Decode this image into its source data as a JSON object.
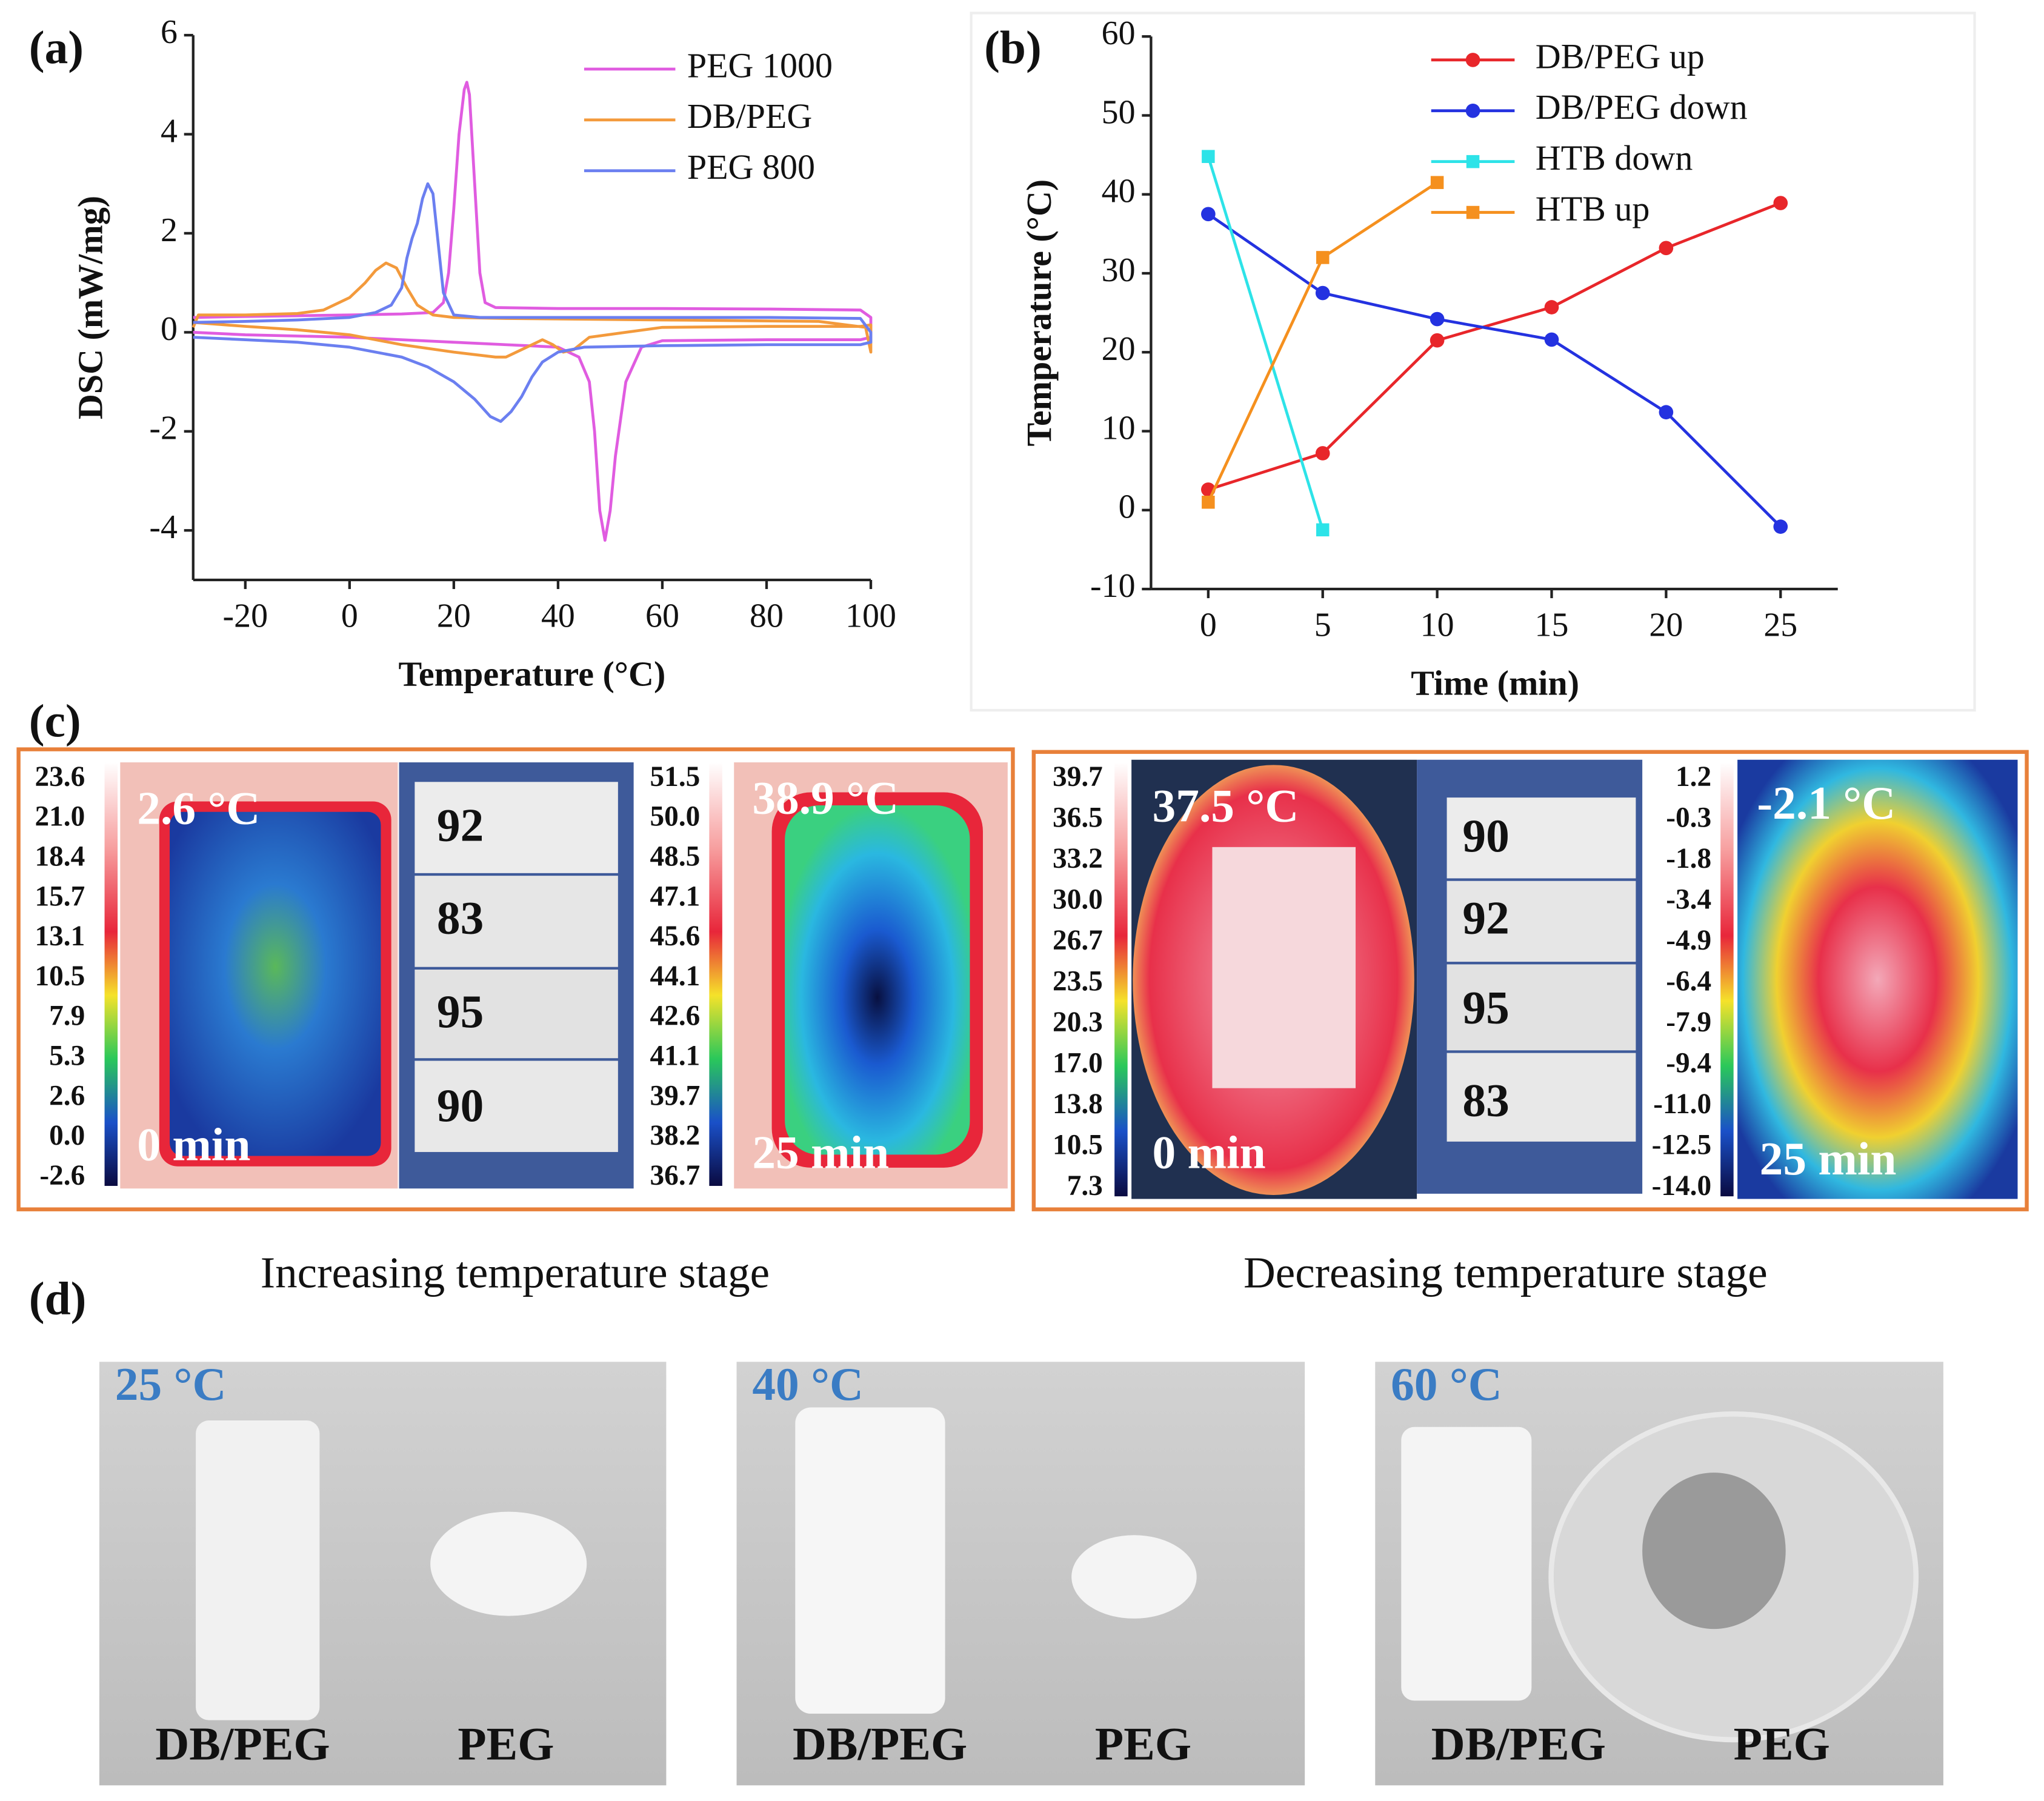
{
  "chart_data": [
    {
      "type": "line",
      "xlabel": "Temperature (°C)",
      "ylabel": "DSC (mW/mg)",
      "xlim": [
        -30,
        100
      ],
      "xticks": [
        -20,
        0,
        20,
        40,
        60,
        80,
        100
      ],
      "ylim": [
        -5,
        6
      ],
      "yticks": [
        -4,
        -2,
        0,
        2,
        4,
        6
      ],
      "series": [
        {
          "name": "PEG 1000",
          "color": "#e05ce0",
          "x": [
            -30,
            -20,
            0,
            10,
            16,
            18,
            19,
            20,
            21,
            22,
            22.5,
            23,
            24,
            25,
            26,
            28,
            40,
            60,
            80,
            98,
            100,
            100,
            98,
            80,
            60,
            56,
            53,
            51,
            50,
            49,
            48,
            47,
            46,
            44,
            40,
            30,
            20,
            0,
            -20,
            -30
          ],
          "values": [
            0.3,
            0.32,
            0.35,
            0.37,
            0.4,
            0.6,
            1.2,
            2.5,
            4.0,
            4.9,
            5.05,
            4.8,
            3.0,
            1.2,
            0.6,
            0.5,
            0.48,
            0.48,
            0.47,
            0.45,
            0.3,
            -0.1,
            -0.15,
            -0.15,
            -0.17,
            -0.3,
            -1.0,
            -2.5,
            -3.6,
            -4.2,
            -3.6,
            -2.0,
            -1.0,
            -0.5,
            -0.3,
            -0.25,
            -0.2,
            -0.1,
            -0.05,
            0.0
          ]
        },
        {
          "name": "DB/PEG",
          "color": "#f39a3c",
          "x": [
            -30,
            -29,
            -20,
            -10,
            -5,
            0,
            3,
            5,
            7,
            9,
            11,
            13,
            16,
            20,
            30,
            60,
            90,
            99,
            100,
            100,
            98,
            80,
            60,
            46,
            43,
            41,
            39,
            37,
            33,
            30,
            28,
            20,
            10,
            0,
            -10,
            -20,
            -30
          ],
          "values": [
            0.1,
            0.35,
            0.35,
            0.38,
            0.45,
            0.7,
            1.0,
            1.25,
            1.4,
            1.3,
            0.9,
            0.55,
            0.35,
            0.3,
            0.28,
            0.25,
            0.22,
            0.1,
            -0.4,
            0.15,
            0.12,
            0.12,
            0.1,
            -0.1,
            -0.35,
            -0.4,
            -0.25,
            -0.15,
            -0.35,
            -0.5,
            -0.5,
            -0.4,
            -0.25,
            -0.05,
            0.05,
            0.12,
            0.2
          ]
        },
        {
          "name": "PEG 800",
          "color": "#6b7ff0",
          "x": [
            -30,
            -20,
            -10,
            0,
            5,
            8,
            10,
            11,
            12,
            13,
            14,
            15,
            16,
            17,
            18,
            20,
            25,
            40,
            60,
            80,
            98,
            100,
            100,
            98,
            80,
            60,
            45,
            40,
            37,
            35,
            33,
            31,
            29,
            27,
            24,
            20,
            15,
            10,
            0,
            -10,
            -20,
            -30
          ],
          "values": [
            0.2,
            0.22,
            0.25,
            0.3,
            0.4,
            0.55,
            0.9,
            1.5,
            1.9,
            2.2,
            2.7,
            3.0,
            2.8,
            1.8,
            0.8,
            0.35,
            0.3,
            0.3,
            0.3,
            0.3,
            0.28,
            0.0,
            -0.2,
            -0.25,
            -0.25,
            -0.27,
            -0.3,
            -0.4,
            -0.6,
            -0.9,
            -1.3,
            -1.6,
            -1.8,
            -1.7,
            -1.35,
            -1.0,
            -0.7,
            -0.5,
            -0.3,
            -0.2,
            -0.15,
            -0.1
          ]
        }
      ]
    },
    {
      "type": "line",
      "xlabel": "Time (min)",
      "ylabel": "Temperature (°C)",
      "x": [
        0,
        5,
        10,
        15,
        20,
        25
      ],
      "xlim": [
        -2.5,
        27.5
      ],
      "xticks": [
        0,
        5,
        10,
        15,
        20,
        25
      ],
      "ylim": [
        -10,
        60
      ],
      "yticks": [
        -10,
        0,
        10,
        20,
        30,
        40,
        50,
        60
      ],
      "series": [
        {
          "name": "DB/PEG up",
          "color": "#e8262a",
          "marker": "circle",
          "values": [
            2.6,
            7.2,
            21.5,
            25.7,
            33.2,
            38.9
          ]
        },
        {
          "name": "DB/PEG down",
          "color": "#2432e0",
          "marker": "circle",
          "values": [
            37.5,
            27.5,
            24.2,
            21.6,
            12.4,
            -2.1
          ]
        },
        {
          "name": "HTB down",
          "color": "#2de3e8",
          "marker": "square",
          "values": [
            44.8,
            -2.5,
            null,
            null,
            null,
            null
          ]
        },
        {
          "name": "HTB up",
          "color": "#f5901e",
          "marker": "square",
          "values": [
            1.0,
            32.0,
            41.5,
            null,
            null,
            null
          ]
        }
      ]
    }
  ],
  "panel_labels": [
    "(a)",
    "(b)",
    "(c)",
    "(d)"
  ],
  "thermal": {
    "groups": [
      {
        "colorbar_left": [
          "23.6",
          "21.0",
          "18.4",
          "15.7",
          "13.1",
          "10.5",
          "7.9",
          "5.3",
          "2.6",
          "0.0",
          "-2.6"
        ],
        "start_temp": "2.6 °C",
        "start_time": "0 min",
        "samples": [
          "92",
          "83",
          "95",
          "90"
        ],
        "colorbar_right": [
          "51.5",
          "50.0",
          "48.5",
          "47.1",
          "45.6",
          "44.1",
          "42.6",
          "41.1",
          "39.7",
          "38.2",
          "36.7"
        ],
        "end_temp": "38.9 °C",
        "end_time": "25 min"
      },
      {
        "colorbar_left": [
          "39.7",
          "36.5",
          "33.2",
          "30.0",
          "26.7",
          "23.5",
          "20.3",
          "17.0",
          "13.8",
          "10.5",
          "7.3"
        ],
        "start_temp": "37.5 °C",
        "start_time": "0 min",
        "samples": [
          "90",
          "92",
          "95",
          "83"
        ],
        "colorbar_right": [
          "1.2",
          "-0.3",
          "-1.8",
          "-3.4",
          "-4.9",
          "-6.4",
          "-7.9",
          "-9.4",
          "-11.0",
          "-12.5",
          "-14.0"
        ],
        "end_temp": "-2.1 °C",
        "end_time": "25 min"
      }
    ]
  },
  "photos": {
    "captions": [
      "Increasing temperature stage",
      "Decreasing temperature stage"
    ],
    "panels": [
      {
        "temp": "25 °C",
        "labels": [
          "DB/PEG",
          "PEG"
        ]
      },
      {
        "temp": "40 °C",
        "labels": [
          "DB/PEG",
          "PEG"
        ]
      },
      {
        "temp": "60 °C",
        "labels": [
          "DB/PEG",
          "PEG"
        ]
      }
    ]
  }
}
